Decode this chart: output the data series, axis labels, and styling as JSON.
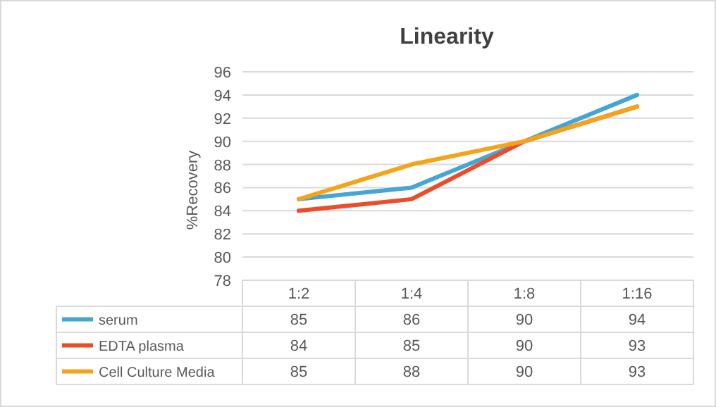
{
  "chart_data": {
    "type": "line",
    "title": "Linearity",
    "ylabel": "%Recovery",
    "categories": [
      "1:2",
      "1:4",
      "1:8",
      "1:16"
    ],
    "series": [
      {
        "name": "serum",
        "color": "#45a5d4",
        "values": [
          85,
          86,
          90,
          94
        ]
      },
      {
        "name": "EDTA plasma",
        "color": "#ee4b2b",
        "values": [
          84,
          85,
          90,
          93
        ]
      },
      {
        "name": "Cell Culture Media",
        "color": "#f6a31c",
        "values": [
          85,
          88,
          90,
          93
        ]
      }
    ],
    "ylim": [
      78,
      96
    ],
    "yticks": [
      78,
      80,
      82,
      84,
      86,
      88,
      90,
      92,
      94,
      96
    ],
    "grid": "y",
    "data_labels": true,
    "legend": "bottom",
    "line_style": "solid",
    "marker": "none"
  }
}
